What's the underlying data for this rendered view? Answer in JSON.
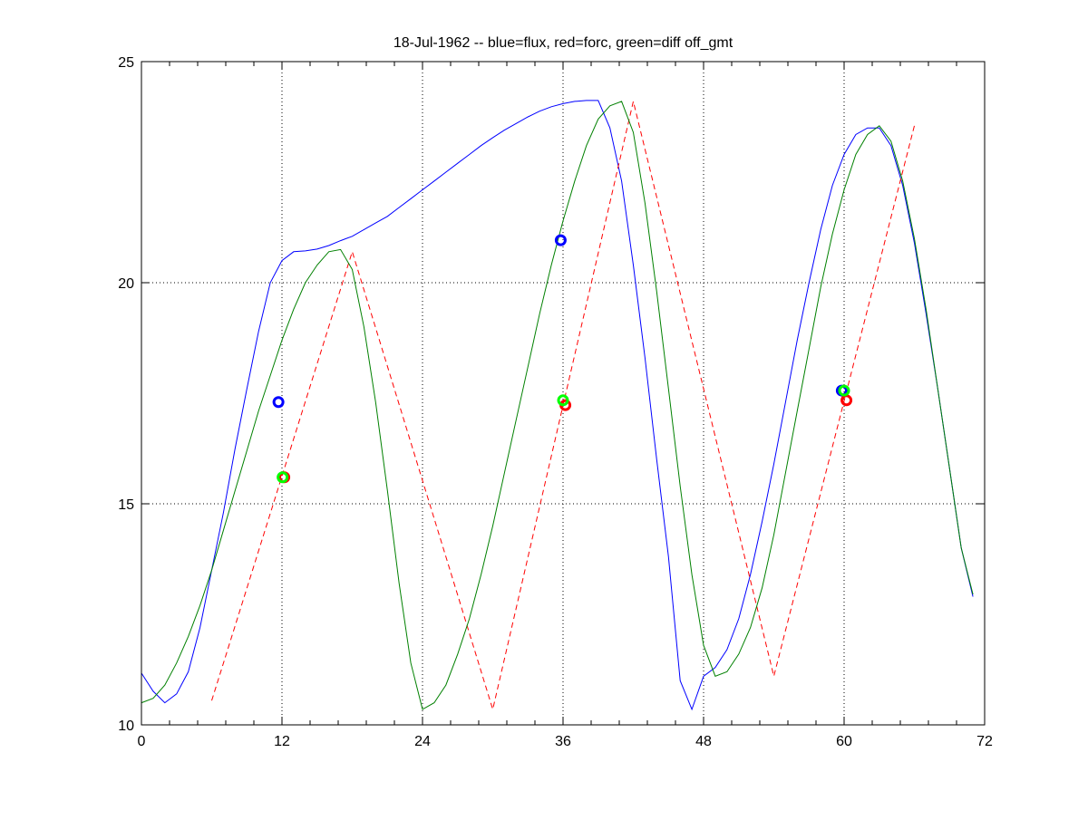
{
  "chart_data": {
    "type": "line",
    "title": "18-Jul-1962 -- blue=flux, red=forc, green=diff off_gmt",
    "xlabel": "",
    "ylabel": "",
    "xlim": [
      0,
      72
    ],
    "ylim": [
      10,
      25
    ],
    "xticks": [
      0,
      12,
      24,
      36,
      48,
      60,
      72
    ],
    "yticks": [
      10,
      15,
      20,
      25
    ],
    "xtick_labels": [
      "0",
      "12",
      "24",
      "36",
      "48",
      "60",
      "72"
    ],
    "ytick_labels": [
      "10",
      "15",
      "20",
      "25"
    ],
    "grid": true,
    "series": [
      {
        "name": "flux",
        "color": "#0000ff",
        "style": "solid",
        "x": [
          0,
          1,
          2,
          3,
          4,
          5,
          6,
          7,
          8,
          9,
          10,
          11,
          12,
          13,
          14,
          15,
          16,
          17,
          18,
          19,
          20,
          21,
          22,
          23,
          24,
          25,
          26,
          27,
          28,
          29,
          30,
          31,
          32,
          33,
          34,
          35,
          36,
          37,
          38,
          39,
          40,
          41,
          42,
          43,
          44,
          45,
          46,
          47,
          48,
          49,
          50,
          51,
          52,
          53,
          54,
          55,
          56,
          57,
          58,
          59,
          60,
          61,
          62,
          63,
          64,
          65,
          66,
          67,
          68,
          69,
          70,
          71
        ],
        "y": [
          11.17,
          10.76,
          10.5,
          10.7,
          11.2,
          12.2,
          13.5,
          14.8,
          16.25,
          17.6,
          18.9,
          20.0,
          20.5,
          20.7,
          20.72,
          20.76,
          20.84,
          20.95,
          21.05,
          21.2,
          21.35,
          21.5,
          21.7,
          21.9,
          22.1,
          22.3,
          22.5,
          22.7,
          22.9,
          23.1,
          23.28,
          23.45,
          23.6,
          23.75,
          23.88,
          23.98,
          24.05,
          24.1,
          24.12,
          24.12,
          23.5,
          22.3,
          20.4,
          18.3,
          16.0,
          13.8,
          11.0,
          10.35,
          11.1,
          11.3,
          11.7,
          12.4,
          13.4,
          14.6,
          15.9,
          17.3,
          18.7,
          20.0,
          21.2,
          22.2,
          22.9,
          23.35,
          23.5,
          23.5,
          23.1,
          22.2,
          20.9,
          19.3,
          17.6,
          15.8,
          14.0,
          12.9
        ]
      },
      {
        "name": "forc",
        "color": "#ff0000",
        "style": "dashed",
        "x": [
          6,
          18,
          30,
          42,
          54,
          66
        ],
        "y": [
          10.55,
          20.7,
          10.35,
          24.1,
          11.1,
          23.55
        ]
      },
      {
        "name": "diff",
        "color": "#008000",
        "style": "solid",
        "x": [
          0,
          1,
          2,
          3,
          4,
          5,
          6,
          7,
          8,
          9,
          10,
          11,
          12,
          13,
          14,
          15,
          16,
          17,
          18,
          19,
          20,
          21,
          22,
          23,
          24,
          25,
          26,
          27,
          28,
          29,
          30,
          31,
          32,
          33,
          34,
          35,
          36,
          37,
          38,
          39,
          40,
          41,
          42,
          43,
          44,
          45,
          46,
          47,
          48,
          49,
          50,
          51,
          52,
          53,
          54,
          55,
          56,
          57,
          58,
          59,
          60,
          61,
          62,
          63,
          64,
          65,
          66,
          67,
          68,
          69,
          70,
          71
        ],
        "y": [
          10.5,
          10.6,
          10.9,
          11.4,
          12.0,
          12.7,
          13.5,
          14.4,
          15.3,
          16.2,
          17.1,
          17.9,
          18.7,
          19.4,
          20.0,
          20.4,
          20.7,
          20.75,
          20.3,
          19.0,
          17.3,
          15.3,
          13.2,
          11.4,
          10.35,
          10.5,
          10.9,
          11.6,
          12.4,
          13.4,
          14.5,
          15.7,
          16.9,
          18.1,
          19.3,
          20.4,
          21.4,
          22.3,
          23.1,
          23.7,
          24.0,
          24.1,
          23.4,
          21.8,
          19.8,
          17.6,
          15.4,
          13.4,
          11.8,
          11.1,
          11.2,
          11.6,
          12.2,
          13.1,
          14.3,
          15.7,
          17.1,
          18.5,
          19.9,
          21.1,
          22.1,
          22.9,
          23.35,
          23.55,
          23.2,
          22.3,
          21.0,
          19.4,
          17.6,
          15.8,
          14.0,
          12.95
        ]
      }
    ],
    "markers": [
      {
        "name": "flux",
        "color": "#0000ff",
        "x": [
          11.7,
          35.8,
          59.8
        ],
        "y": [
          17.3,
          20.96,
          17.56
        ]
      },
      {
        "name": "forc",
        "color": "#ff0000",
        "x": [
          12.2,
          36.2,
          60.2
        ],
        "y": [
          15.6,
          17.23,
          17.34
        ]
      },
      {
        "name": "diff",
        "color": "#00ff00",
        "x": [
          12.05,
          36.0,
          60.0
        ],
        "y": [
          15.6,
          17.34,
          17.56
        ]
      }
    ]
  }
}
